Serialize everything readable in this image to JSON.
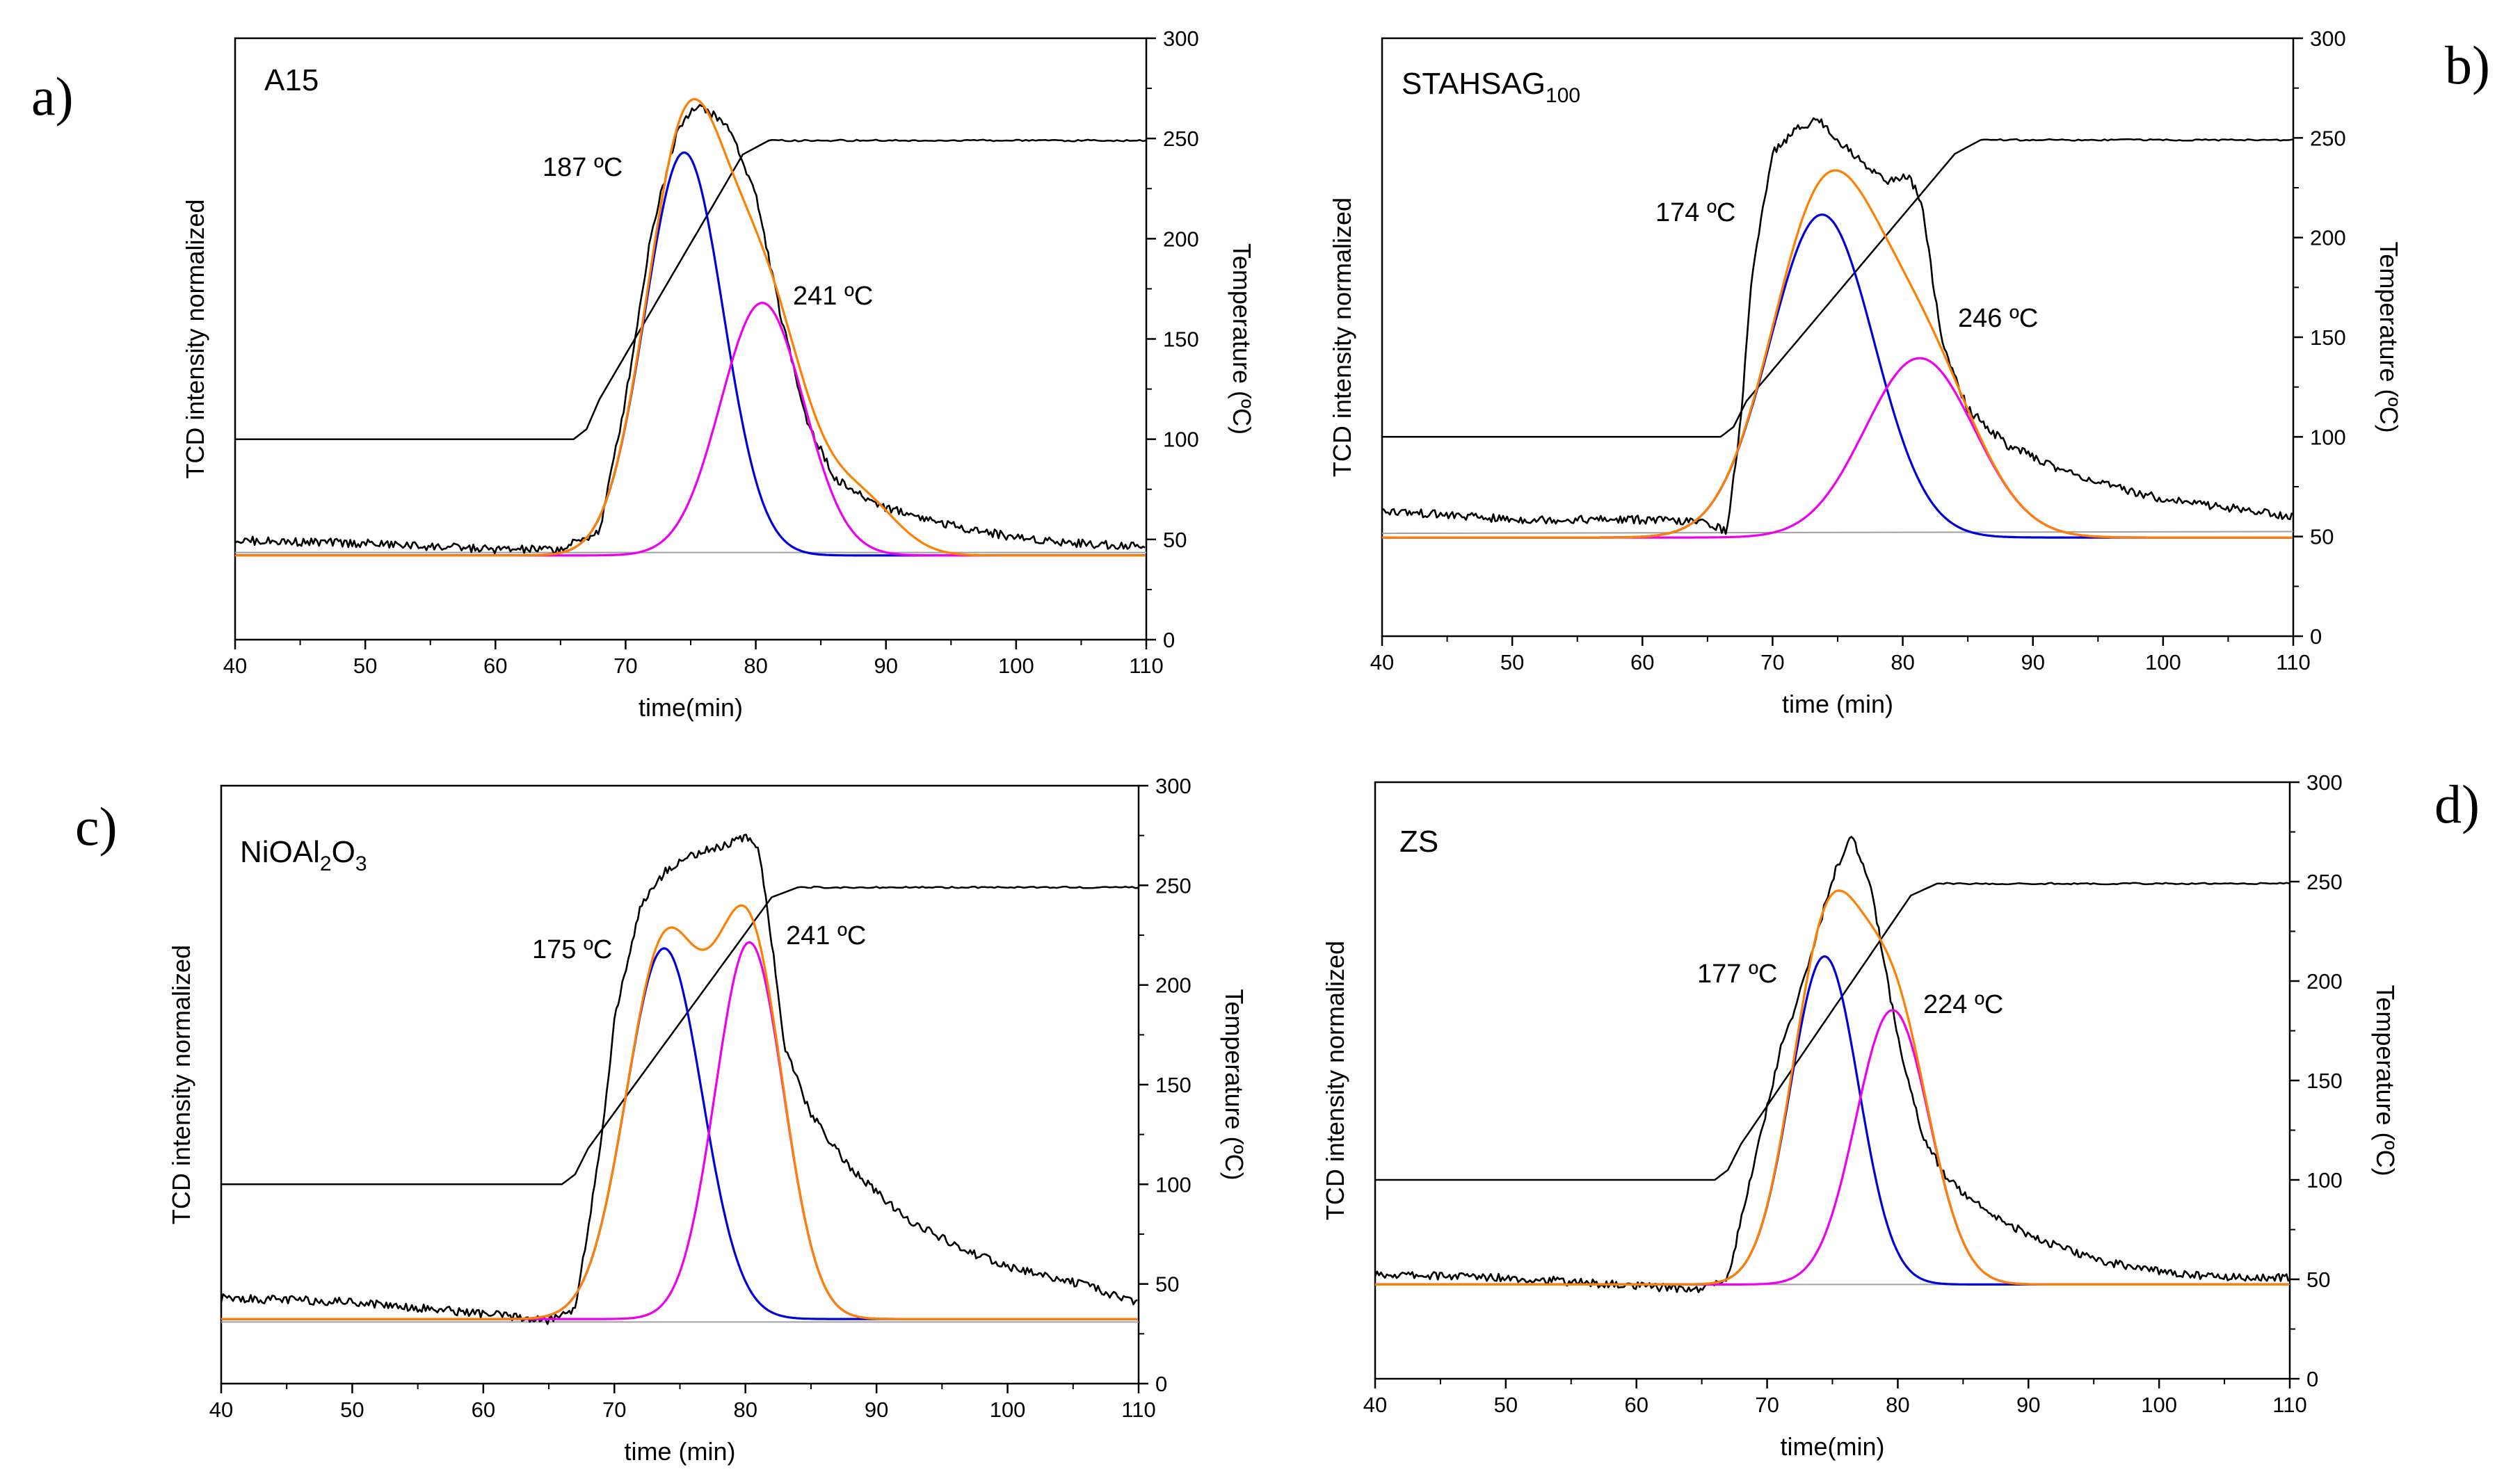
{
  "chart_data": [
    {
      "type": "line",
      "panel_letter": "a)",
      "sample_label": "A15",
      "xlabel": "time(min)",
      "ylabel_left": "TCD intensity normalized",
      "ylabel_right": "Temperature (ºC)",
      "xlim": [
        40,
        110
      ],
      "xticks": [
        "40",
        "50",
        "60",
        "70",
        "80",
        "90",
        "100",
        "110"
      ],
      "ylim_right": [
        0,
        300
      ],
      "yticks_right": [
        "0",
        "50",
        "100",
        "150",
        "200",
        "250",
        "300"
      ],
      "ylim_signal": [
        0,
        100
      ],
      "temperature": {
        "name": "Temperature",
        "color": "#000000",
        "x": [
          40,
          66,
          67,
          68,
          79,
          81,
          110
        ],
        "y": [
          100,
          100,
          105,
          120,
          242,
          249,
          249
        ]
      },
      "baseline": {
        "name": "Baseline",
        "color": "#a0a0a0",
        "x": [
          40,
          110
        ],
        "y": [
          14.5,
          14.5
        ]
      },
      "series": [
        {
          "name": "TCD signal",
          "color": "#000000",
          "x": [
            40,
            50,
            60,
            65,
            68,
            70,
            72,
            74,
            75,
            76,
            78,
            80,
            82,
            84,
            86,
            88,
            90,
            95,
            100,
            105,
            110
          ],
          "y": [
            16.5,
            16,
            15,
            15,
            18,
            40,
            68,
            85,
            88,
            88.5,
            85,
            74,
            53,
            36,
            27,
            24,
            22,
            19,
            17,
            16,
            15.5
          ]
        },
        {
          "name": "Peak 1 (187 ºC)",
          "color": "#0000dd",
          "gaussian": {
            "amp": 67,
            "center": 74.5,
            "sigma": 3.0,
            "base": 14
          }
        },
        {
          "name": "Peak 2 (241 ºC)",
          "color": "#ee00ee",
          "gaussian": {
            "amp": 42,
            "center": 80.5,
            "sigma": 3.2,
            "base": 14
          }
        },
        {
          "name": "Envelope fit",
          "color": "#ff7f00",
          "sum_of": [
            1,
            2
          ],
          "extra_gaussian": {
            "amp": 9,
            "center": 88,
            "sigma": 2.8
          }
        }
      ],
      "annotations": [
        "187 ºC",
        "241 ºC"
      ],
      "right_ylabel_upside": false
    },
    {
      "type": "line",
      "panel_letter": "b)",
      "sample_label": "STAHSAG",
      "sample_label_sub": "100",
      "xlabel": "time (min)",
      "ylabel_left": "TCD intensity normalized",
      "ylabel_right": "Temperature (ºC)",
      "xlim": [
        40,
        110
      ],
      "xticks": [
        "40",
        "50",
        "60",
        "70",
        "80",
        "90",
        "100",
        "110"
      ],
      "ylim_right": [
        0,
        300
      ],
      "yticks_right": [
        "0",
        "50",
        "100",
        "150",
        "200",
        "250",
        "300"
      ],
      "ylim_signal": [
        0,
        100
      ],
      "temperature": {
        "name": "Temperature",
        "color": "#000000",
        "x": [
          40,
          66,
          67,
          68,
          84,
          86,
          110
        ],
        "y": [
          100,
          100,
          105,
          118,
          242,
          249,
          249
        ]
      },
      "baseline": {
        "name": "Baseline",
        "color": "#a0a0a0",
        "x": [
          40,
          110
        ],
        "y": [
          17.2,
          17.5
        ]
      },
      "series": [
        {
          "name": "TCD signal",
          "color": "#000000",
          "x": [
            40,
            50,
            60,
            65,
            66.5,
            67.5,
            68.5,
            70,
            72,
            73.5,
            75,
            77,
            79,
            80.5,
            81.5,
            83,
            85,
            88,
            92,
            96,
            100,
            105,
            110
          ],
          "y": [
            21,
            19.5,
            19.5,
            19,
            17.5,
            35,
            62,
            81,
            85,
            86.5,
            83,
            79,
            76,
            77,
            72,
            49,
            38,
            32,
            28,
            25,
            23,
            21.5,
            20
          ]
        },
        {
          "name": "Peak 1 (174 ºC)",
          "color": "#0000dd",
          "gaussian": {
            "amp": 54,
            "center": 73.8,
            "sigma": 4.0,
            "base": 16.5
          }
        },
        {
          "name": "Peak 2 (246 ºC)",
          "color": "#ee00ee",
          "gaussian": {
            "amp": 30,
            "center": 81.3,
            "sigma": 4.2,
            "base": 16.5
          }
        },
        {
          "name": "Envelope fit",
          "color": "#ff7f00",
          "sum_of": [
            1,
            2
          ]
        }
      ],
      "annotations": [
        "174 ºC",
        "246 ºC"
      ],
      "right_ylabel_upside": false
    },
    {
      "type": "line",
      "panel_letter": "c)",
      "sample_label": "NiOAl",
      "sample_label_sub": "2",
      "sample_label_mid": "O",
      "sample_label_sub2": "3",
      "xlabel": "time (min)",
      "ylabel_left": "TCD intensity normalized",
      "ylabel_right": "Temperature (ºC)",
      "xlim": [
        40,
        110
      ],
      "xticks": [
        "40",
        "50",
        "60",
        "70",
        "80",
        "90",
        "100",
        "110"
      ],
      "ylim_right": [
        0,
        300
      ],
      "yticks_right": [
        "0",
        "50",
        "100",
        "150",
        "200",
        "250",
        "300"
      ],
      "ylim_signal": [
        0,
        100
      ],
      "temperature": {
        "name": "Temperature",
        "color": "#000000",
        "x": [
          40,
          66,
          67,
          68,
          82,
          84,
          110
        ],
        "y": [
          100,
          100,
          105,
          118,
          244,
          249,
          249
        ]
      },
      "baseline": {
        "name": "Baseline",
        "color": "#a0a0a0",
        "x": [
          40,
          110
        ],
        "y": [
          10.3,
          10.3
        ]
      },
      "series": [
        {
          "name": "TCD signal",
          "color": "#000000",
          "x": [
            40,
            50,
            60,
            65,
            67,
            69,
            70,
            72,
            74,
            76,
            78,
            80,
            81,
            82,
            83,
            85,
            88,
            92,
            96,
            100,
            105,
            110
          ],
          "y": [
            14.3,
            13.7,
            11.7,
            10.5,
            12.6,
            40,
            61,
            80,
            86,
            88.5,
            89.7,
            91.3,
            90,
            74,
            56,
            45,
            36,
            28,
            23,
            19.5,
            17,
            13.5
          ]
        },
        {
          "name": "Peak 1 (175 ºC)",
          "color": "#0000dd",
          "gaussian": {
            "amp": 62,
            "center": 73.8,
            "sigma": 2.9,
            "base": 10.8
          }
        },
        {
          "name": "Peak 2 (241 ºC)",
          "color": "#ee00ee",
          "gaussian": {
            "amp": 63,
            "center": 80.3,
            "sigma": 2.6,
            "base": 10.8
          }
        },
        {
          "name": "Envelope fit",
          "color": "#ff7f00",
          "sum_of": [
            1,
            2
          ]
        }
      ],
      "annotations": [
        "175 ºC",
        "241 ºC"
      ],
      "right_ylabel_upside": false
    },
    {
      "type": "line",
      "panel_letter": "d)",
      "sample_label": "ZS",
      "xlabel": "time(min)",
      "ylabel_left": "TCD intensity normalized",
      "ylabel_right": "Temperature (ºC)",
      "xlim": [
        40,
        110
      ],
      "xticks": [
        "40",
        "50",
        "60",
        "70",
        "80",
        "90",
        "100",
        "110"
      ],
      "ylim_right": [
        0,
        300
      ],
      "yticks_right": [
        "0",
        "50",
        "100",
        "150",
        "200",
        "250",
        "300"
      ],
      "ylim_signal": [
        0,
        100
      ],
      "temperature": {
        "name": "Temperature",
        "color": "#000000",
        "x": [
          40,
          66,
          67,
          68,
          81,
          83,
          110
        ],
        "y": [
          100,
          100,
          105,
          118,
          243,
          249,
          249
        ]
      },
      "baseline": {
        "name": "Baseline",
        "color": "#a0a0a0",
        "x": [
          40,
          110
        ],
        "y": [
          15.8,
          15.8
        ]
      },
      "series": [
        {
          "name": "TCD signal",
          "color": "#000000",
          "x": [
            40,
            50,
            60,
            65,
            67,
            69,
            71,
            73,
            75,
            76.5,
            78,
            80,
            82,
            84,
            87,
            90,
            95,
            100,
            105,
            110
          ],
          "y": [
            17.5,
            17,
            15.5,
            15,
            17,
            36,
            55,
            68,
            84,
            91,
            82,
            57,
            40,
            33,
            28,
            24,
            20,
            18,
            17,
            17
          ]
        },
        {
          "name": "Peak 1 (177 ºC)",
          "color": "#0000dd",
          "gaussian": {
            "amp": 55,
            "center": 74.4,
            "sigma": 2.6,
            "base": 15.8
          }
        },
        {
          "name": "Peak 2 (224 ºC)",
          "color": "#ee00ee",
          "gaussian": {
            "amp": 46,
            "center": 79.6,
            "sigma": 2.8,
            "base": 15.8
          }
        },
        {
          "name": "Envelope fit",
          "color": "#ff7f00",
          "sum_of": [
            1,
            2
          ]
        }
      ],
      "annotations": [
        "177 ºC",
        "224 ºC"
      ],
      "right_ylabel_upside": true
    }
  ]
}
